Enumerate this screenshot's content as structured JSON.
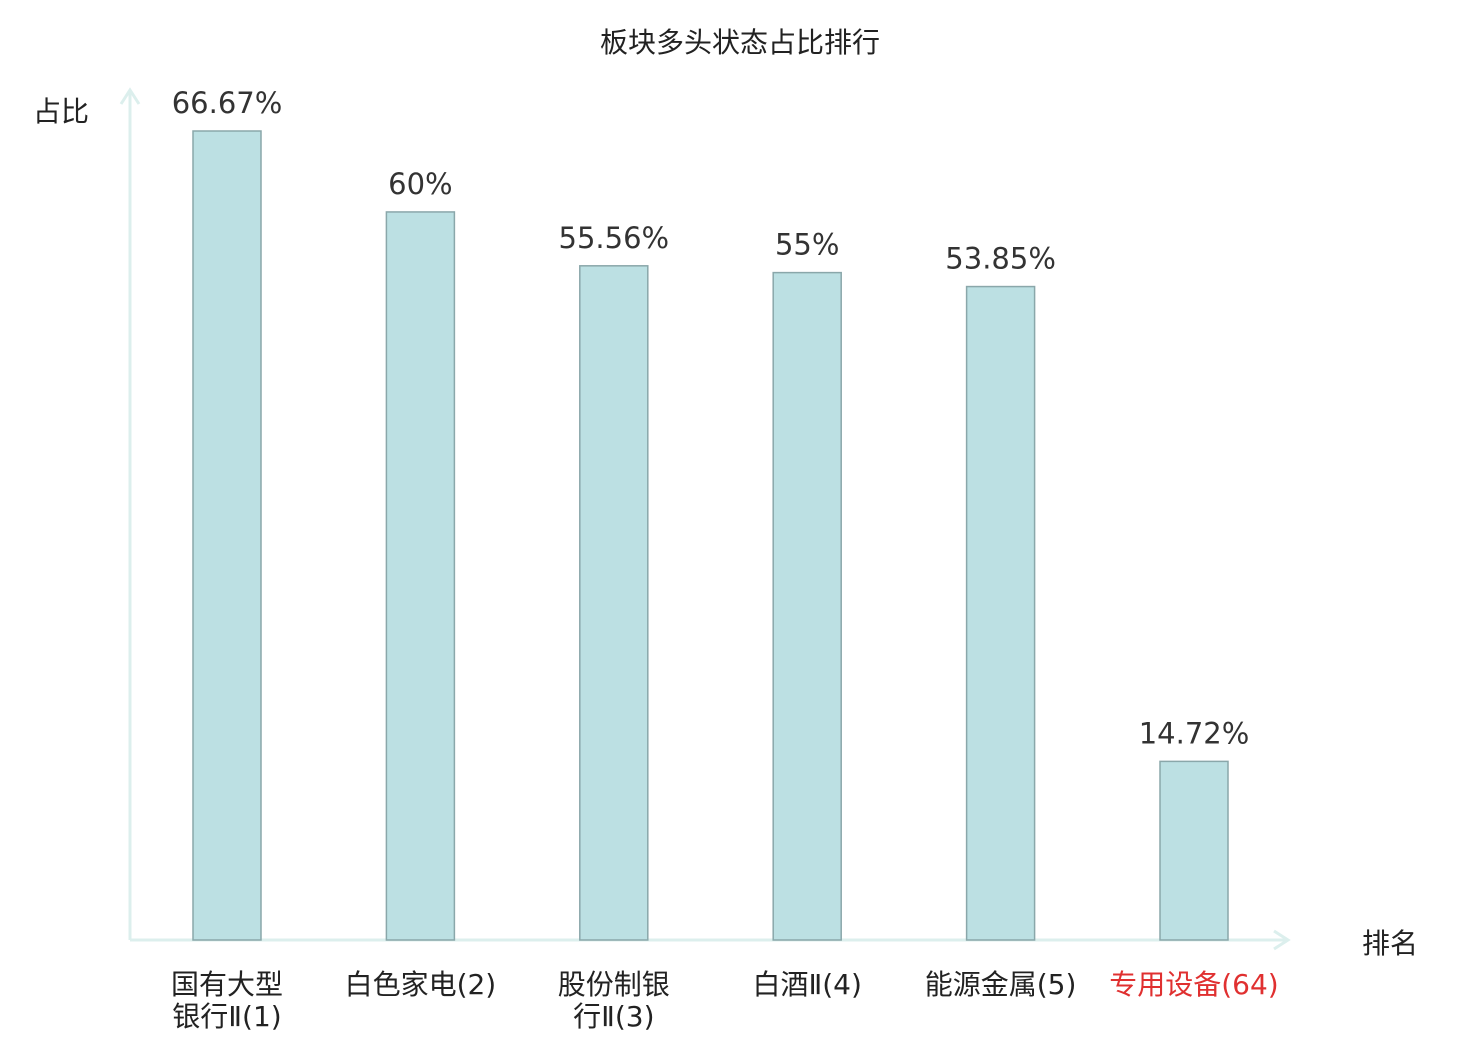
{
  "chart_data": {
    "type": "bar",
    "title": "板块多头状态占比排行",
    "ylabel": "占比",
    "xlabel": "排名",
    "categories": [
      {
        "lines": [
          "国有大型",
          "银行Ⅱ(1)"
        ],
        "highlight": false
      },
      {
        "lines": [
          "白色家电(2)"
        ],
        "highlight": false
      },
      {
        "lines": [
          "股份制银",
          "行Ⅱ(3)"
        ],
        "highlight": false
      },
      {
        "lines": [
          "白酒Ⅱ(4)"
        ],
        "highlight": false
      },
      {
        "lines": [
          "能源金属(5)"
        ],
        "highlight": false
      },
      {
        "lines": [
          "专用设备(64)"
        ],
        "highlight": true
      }
    ],
    "values": [
      66.67,
      60,
      55.56,
      55,
      53.85,
      14.72
    ],
    "value_labels": [
      "66.67%",
      "60%",
      "55.56%",
      "55%",
      "53.85%",
      "14.72%"
    ],
    "ylim": [
      0,
      66.67
    ],
    "grid": false,
    "legend": "none",
    "colors": {
      "bar_fill": "#bce0e3",
      "bar_stroke": "#8aa7aa",
      "axis": "#dcefed",
      "text": "#333333",
      "title": "#222222",
      "highlight": "#e03030"
    }
  }
}
